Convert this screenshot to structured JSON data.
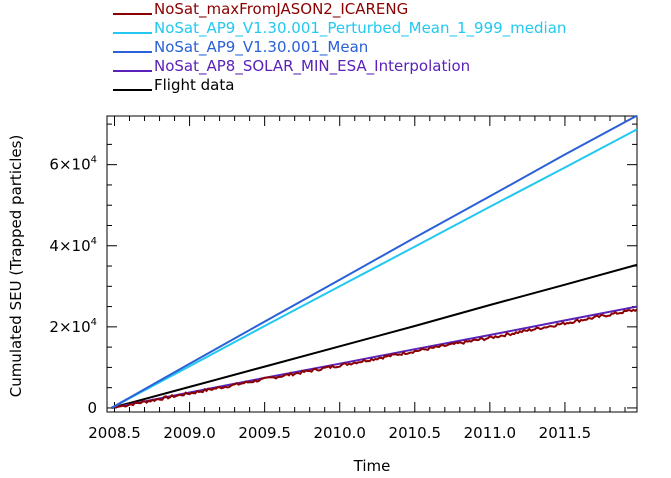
{
  "chart_data": {
    "type": "line",
    "title": "",
    "xlabel": "Time",
    "ylabel": "Cumulated SEU (Trapped particles)",
    "xlim": [
      2008.45,
      2011.98
    ],
    "ylim": [
      -1000,
      72000
    ],
    "x_ticks": [
      2008.5,
      2009.0,
      2009.5,
      2010.0,
      2010.5,
      2011.0,
      2011.5
    ],
    "x_tick_labels": [
      "2008.5",
      "2009.0",
      "2009.5",
      "2010.0",
      "2010.5",
      "2011.0",
      "2011.5"
    ],
    "y_ticks": [
      {
        "value": 0,
        "base": "0",
        "exp": ""
      },
      {
        "value": 20000,
        "base": "2×10",
        "exp": "4"
      },
      {
        "value": 40000,
        "base": "4×10",
        "exp": "4"
      },
      {
        "value": 60000,
        "base": "6×10",
        "exp": "4"
      }
    ],
    "legend_position": "top",
    "grid": false,
    "series": [
      {
        "name": "NoSat_maxFromJASON2_ICARENG",
        "color": "#8b0000",
        "noisy": true,
        "x": [
          2008.48,
          2009.0,
          2009.5,
          2010.0,
          2010.5,
          2011.0,
          2011.5,
          2011.98
        ],
        "values": [
          0,
          3600,
          7100,
          10500,
          14000,
          17300,
          20900,
          24300
        ]
      },
      {
        "name": "NoSat_AP9_V1.30.001_Perturbed_Mean_1_999_median",
        "color": "#22c8f0",
        "x": [
          2008.48,
          2009.0,
          2009.5,
          2010.0,
          2010.5,
          2011.0,
          2011.5,
          2011.98
        ],
        "values": [
          0,
          10300,
          20200,
          30000,
          39800,
          49600,
          59300,
          68700
        ]
      },
      {
        "name": "NoSat_AP9_V1.30.001_Mean",
        "color": "#2a60d8",
        "x": [
          2008.48,
          2009.0,
          2009.5,
          2010.0,
          2010.5,
          2011.0,
          2011.5,
          2011.98
        ],
        "values": [
          0,
          10900,
          21300,
          31600,
          42000,
          52200,
          62500,
          72100
        ]
      },
      {
        "name": "NoSat_AP8_SOLAR_MIN_ESA_Interpolation",
        "color": "#5a22b8",
        "x": [
          2008.48,
          2009.0,
          2009.5,
          2010.0,
          2010.5,
          2011.0,
          2011.5,
          2011.98
        ],
        "values": [
          0,
          3800,
          7400,
          10900,
          14500,
          18000,
          21600,
          25000
        ]
      },
      {
        "name": "Flight data",
        "color": "#000000",
        "x": [
          2008.48,
          2009.0,
          2009.5,
          2010.0,
          2010.5,
          2011.0,
          2011.5,
          2011.98
        ],
        "values": [
          0,
          5200,
          10200,
          15200,
          20200,
          25400,
          30400,
          35300
        ]
      }
    ]
  }
}
